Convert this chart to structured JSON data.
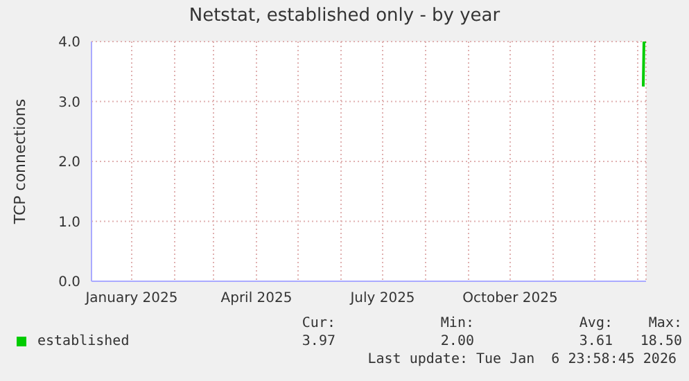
{
  "chart_data": {
    "type": "line",
    "title": "Netstat, established only - by year",
    "ylabel": "TCP connections",
    "xlim": [
      "2024-12-03",
      "2026-01-07"
    ],
    "xticks": [
      {
        "value": "2025-01",
        "label": "January 2025"
      },
      {
        "value": "2025-02",
        "label": null
      },
      {
        "value": "2025-03",
        "label": null
      },
      {
        "value": "2025-04",
        "label": "April 2025"
      },
      {
        "value": "2025-05",
        "label": null
      },
      {
        "value": "2025-06",
        "label": null
      },
      {
        "value": "2025-07",
        "label": "July 2025"
      },
      {
        "value": "2025-08",
        "label": null
      },
      {
        "value": "2025-09",
        "label": null
      },
      {
        "value": "2025-10",
        "label": "October 2025"
      },
      {
        "value": "2025-11",
        "label": null
      },
      {
        "value": "2025-12",
        "label": null
      },
      {
        "value": "2026-01",
        "label": null
      }
    ],
    "ylim": [
      0,
      4
    ],
    "yticks": [
      {
        "value": 0,
        "label": "0.0"
      },
      {
        "value": 1,
        "label": "1.0"
      },
      {
        "value": 2,
        "label": "2.0"
      },
      {
        "value": 3,
        "label": "3.0"
      },
      {
        "value": 4,
        "label": "4.0"
      }
    ],
    "grid": true,
    "legend": "bottom",
    "marker": "none",
    "line_style": "solid",
    "series": [
      {
        "name": "established",
        "color": "#00cc00",
        "x": [
          "2026-01-05T00:00",
          "2026-01-05T12:00",
          "2026-01-06T12:00"
        ],
        "values": [
          3.25,
          4.0,
          3.97
        ]
      }
    ],
    "annotations": [
      "Cur:",
      "Min:",
      "Avg:",
      "Max:",
      "3.97",
      "2.00",
      "3.61",
      "18.50",
      "Last update: Tue Jan  6 23:58:45 2026"
    ]
  }
}
